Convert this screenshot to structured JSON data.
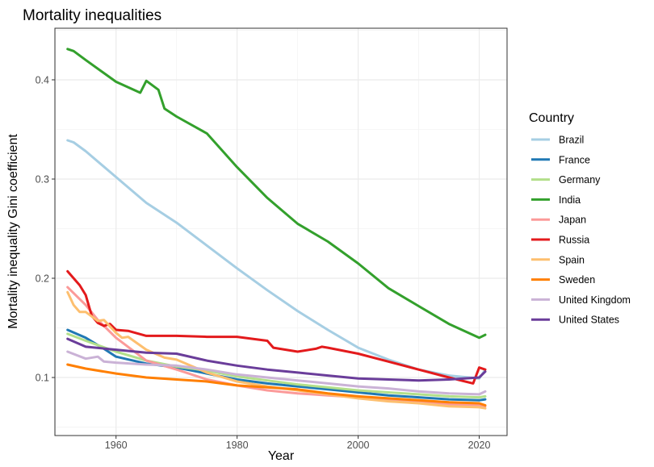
{
  "chart_data": {
    "type": "line",
    "title": "Mortality inequalities",
    "xlabel": "Year",
    "ylabel": "Mortality inequality Gini coefficient",
    "xlim": [
      1949.9,
      2024.6
    ],
    "ylim": [
      0.0415,
      0.452
    ],
    "x_ticks": [
      1960,
      1980,
      2000,
      2020
    ],
    "y_ticks": [
      0.1,
      0.2,
      0.3,
      0.4
    ],
    "x_tick_labels": [
      "1960",
      "1980",
      "2000",
      "2020"
    ],
    "y_tick_labels": [
      "0.1",
      "0.2",
      "0.3",
      "0.4"
    ],
    "grid": true,
    "legend_title": "Country",
    "legend_position": "right",
    "series": [
      {
        "name": "Brazil",
        "color": "#A6CEE3",
        "x": [
          1952,
          1953,
          1955,
          1960,
          1965,
          1970,
          1975,
          1980,
          1985,
          1990,
          1995,
          2000,
          2005,
          2010,
          2015,
          2020,
          2021
        ],
        "y": [
          0.339,
          0.337,
          0.328,
          0.302,
          0.276,
          0.256,
          0.233,
          0.21,
          0.188,
          0.167,
          0.148,
          0.13,
          0.118,
          0.108,
          0.102,
          0.099,
          0.108
        ]
      },
      {
        "name": "France",
        "color": "#1F78B4",
        "x": [
          1952,
          1955,
          1958,
          1960,
          1965,
          1970,
          1975,
          1980,
          1985,
          1990,
          1995,
          2000,
          2005,
          2010,
          2015,
          2020,
          2021
        ],
        "y": [
          0.148,
          0.14,
          0.129,
          0.121,
          0.114,
          0.11,
          0.104,
          0.098,
          0.094,
          0.091,
          0.088,
          0.085,
          0.082,
          0.08,
          0.078,
          0.077,
          0.078
        ]
      },
      {
        "name": "Germany",
        "color": "#B2DF8A",
        "x": [
          1952,
          1955,
          1960,
          1965,
          1970,
          1975,
          1980,
          1985,
          1990,
          1995,
          2000,
          2005,
          2010,
          2015,
          2020,
          2021
        ],
        "y": [
          0.144,
          0.137,
          0.126,
          0.117,
          0.111,
          0.107,
          0.101,
          0.097,
          0.093,
          0.09,
          0.087,
          0.085,
          0.083,
          0.081,
          0.08,
          0.081
        ]
      },
      {
        "name": "India",
        "color": "#33A02C",
        "x": [
          1952,
          1953,
          1955,
          1960,
          1964,
          1965,
          1967,
          1968,
          1970,
          1975,
          1980,
          1985,
          1990,
          1995,
          2000,
          2005,
          2010,
          2015,
          2020,
          2021
        ],
        "y": [
          0.431,
          0.429,
          0.42,
          0.398,
          0.387,
          0.399,
          0.39,
          0.371,
          0.363,
          0.346,
          0.312,
          0.281,
          0.255,
          0.237,
          0.215,
          0.19,
          0.172,
          0.154,
          0.14,
          0.143
        ]
      },
      {
        "name": "Japan",
        "color": "#FB9A99",
        "x": [
          1952,
          1955,
          1957,
          1960,
          1965,
          1970,
          1975,
          1980,
          1985,
          1990,
          1995,
          2000,
          2005,
          2010,
          2015,
          2020,
          2021
        ],
        "y": [
          0.191,
          0.173,
          0.158,
          0.14,
          0.117,
          0.108,
          0.098,
          0.092,
          0.087,
          0.084,
          0.082,
          0.08,
          0.077,
          0.075,
          0.073,
          0.072,
          0.071
        ]
      },
      {
        "name": "Russia",
        "color": "#E31A1C",
        "x": [
          1952,
          1954,
          1955,
          1956,
          1957,
          1958,
          1959,
          1960,
          1962,
          1965,
          1970,
          1975,
          1980,
          1985,
          1986,
          1990,
          1993,
          1994,
          1995,
          2000,
          2005,
          2010,
          2015,
          2019,
          2020,
          2021
        ],
        "y": [
          0.207,
          0.193,
          0.183,
          0.162,
          0.155,
          0.152,
          0.154,
          0.148,
          0.147,
          0.142,
          0.142,
          0.141,
          0.141,
          0.137,
          0.13,
          0.126,
          0.129,
          0.131,
          0.13,
          0.124,
          0.116,
          0.108,
          0.1,
          0.094,
          0.11,
          0.108
        ]
      },
      {
        "name": "Spain",
        "color": "#FDBF6F",
        "x": [
          1952,
          1953,
          1954,
          1955,
          1957,
          1958,
          1960,
          1961,
          1962,
          1965,
          1968,
          1970,
          1975,
          1980,
          1985,
          1990,
          1995,
          2000,
          2005,
          2010,
          2015,
          2020,
          2021
        ],
        "y": [
          0.186,
          0.173,
          0.166,
          0.166,
          0.157,
          0.158,
          0.145,
          0.14,
          0.141,
          0.128,
          0.12,
          0.118,
          0.105,
          0.096,
          0.091,
          0.087,
          0.083,
          0.079,
          0.076,
          0.074,
          0.071,
          0.07,
          0.069
        ]
      },
      {
        "name": "Sweden",
        "color": "#FF7F00",
        "x": [
          1952,
          1955,
          1960,
          1965,
          1970,
          1975,
          1980,
          1985,
          1990,
          1995,
          2000,
          2005,
          2010,
          2015,
          2020,
          2021
        ],
        "y": [
          0.113,
          0.109,
          0.104,
          0.1,
          0.098,
          0.096,
          0.092,
          0.09,
          0.088,
          0.084,
          0.081,
          0.079,
          0.077,
          0.075,
          0.074,
          0.072
        ]
      },
      {
        "name": "United Kingdom",
        "color": "#CAB2D6",
        "x": [
          1952,
          1955,
          1957,
          1958,
          1960,
          1965,
          1970,
          1975,
          1980,
          1985,
          1990,
          1995,
          2000,
          2005,
          2010,
          2015,
          2020,
          2021
        ],
        "y": [
          0.126,
          0.119,
          0.121,
          0.116,
          0.115,
          0.113,
          0.112,
          0.108,
          0.103,
          0.1,
          0.097,
          0.094,
          0.091,
          0.089,
          0.086,
          0.084,
          0.083,
          0.086
        ]
      },
      {
        "name": "United States",
        "color": "#6A3D9A",
        "x": [
          1952,
          1955,
          1960,
          1965,
          1970,
          1975,
          1980,
          1985,
          1990,
          1995,
          2000,
          2005,
          2010,
          2015,
          2020,
          2021
        ],
        "y": [
          0.139,
          0.131,
          0.128,
          0.125,
          0.124,
          0.117,
          0.112,
          0.108,
          0.105,
          0.102,
          0.099,
          0.098,
          0.097,
          0.098,
          0.1,
          0.106
        ]
      }
    ]
  }
}
